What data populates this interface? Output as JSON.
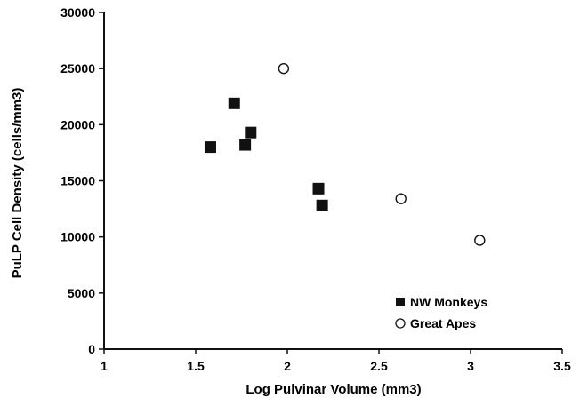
{
  "chart_data": {
    "type": "scatter",
    "title": "",
    "xlabel": "Log Pulvinar Volume (mm3)",
    "ylabel": "PuLP Cell Density (cells/mm3)",
    "xlim": [
      1,
      3.5
    ],
    "ylim": [
      0,
      30000
    ],
    "x_ticks": [
      "1",
      "1.5",
      "2",
      "2.5",
      "3",
      "3.5"
    ],
    "y_ticks": [
      "0",
      "5000",
      "10000",
      "15000",
      "20000",
      "25000",
      "30000"
    ],
    "grid": false,
    "legend_position": "bottom-right",
    "series": [
      {
        "name": "NW Monkeys",
        "marker": "filled-square",
        "color": "#111111",
        "points": [
          {
            "x": 1.58,
            "y": 18000
          },
          {
            "x": 1.71,
            "y": 21900
          },
          {
            "x": 1.77,
            "y": 18200
          },
          {
            "x": 1.8,
            "y": 19300
          },
          {
            "x": 2.17,
            "y": 14300
          },
          {
            "x": 2.19,
            "y": 12800
          }
        ]
      },
      {
        "name": "Great Apes",
        "marker": "open-circle",
        "color": "#111111",
        "points": [
          {
            "x": 1.98,
            "y": 25000
          },
          {
            "x": 2.62,
            "y": 13400
          },
          {
            "x": 3.05,
            "y": 9700
          }
        ]
      }
    ]
  }
}
